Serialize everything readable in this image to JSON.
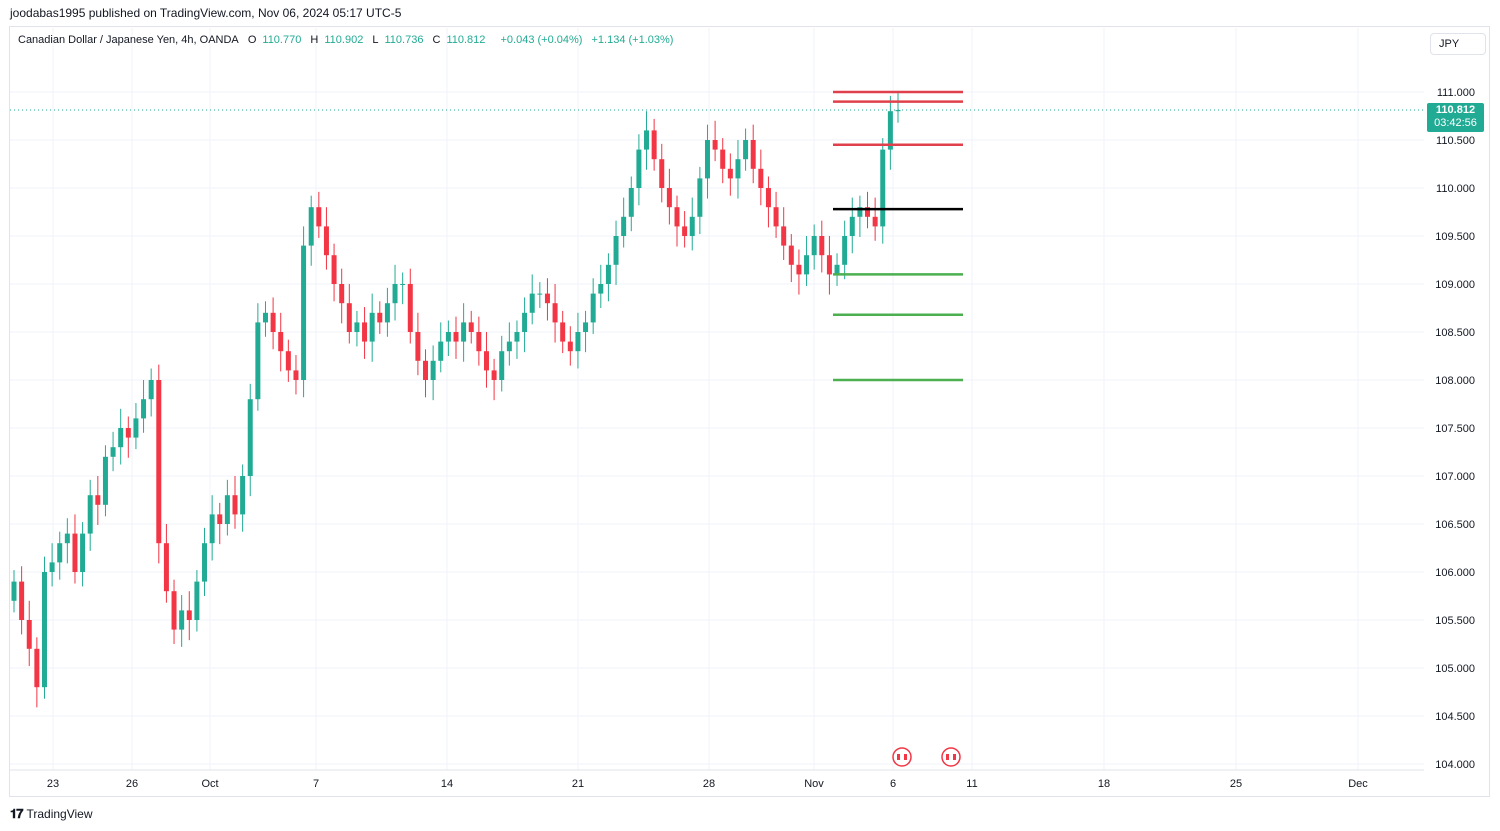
{
  "header": {
    "published": "joodabas1995 published on TradingView.com, Nov 06, 2024 05:17 UTC-5"
  },
  "legend": {
    "symbol": "Canadian Dollar / Japanese Yen, 4h, OANDA",
    "o_label": "O",
    "o": "110.770",
    "h_label": "H",
    "h": "110.902",
    "l_label": "L",
    "l": "110.736",
    "c_label": "C",
    "c": "110.812",
    "change": "+0.043 (+0.04%)",
    "change_period": "+1.134 (+1.03%)"
  },
  "currency_button": "JPY",
  "last_price": {
    "price": "110.812",
    "countdown": "03:42:56"
  },
  "footer": {
    "logo_text": "TradingView"
  },
  "colors": {
    "up": "#22ab94",
    "down": "#f23645",
    "grid": "#f0f3fa",
    "text": "#131722",
    "resistance": "#e0404b",
    "pivot": "#000000",
    "support": "#4caf50"
  },
  "chart_data": {
    "type": "candlestick",
    "ylim": [
      103.85,
      111.65
    ],
    "y_ticks": [
      "111.000",
      "110.500",
      "110.000",
      "109.500",
      "109.000",
      "108.500",
      "108.000",
      "107.500",
      "107.000",
      "106.500",
      "106.000",
      "105.500",
      "105.000",
      "104.500",
      "104.000"
    ],
    "x_ticks": [
      "23",
      "26",
      "Oct",
      "7",
      "14",
      "21",
      "28",
      "Nov",
      "6",
      "11",
      "18",
      "25",
      "Dec"
    ],
    "closes": [
      105.9,
      105.5,
      105.2,
      104.8,
      106.0,
      106.1,
      106.3,
      106.4,
      106.0,
      106.4,
      106.8,
      106.7,
      107.2,
      107.3,
      107.5,
      107.4,
      107.6,
      107.8,
      108.0,
      106.3,
      105.8,
      105.4,
      105.6,
      105.5,
      105.9,
      106.3,
      106.6,
      106.5,
      106.8,
      106.6,
      107.0,
      107.8,
      108.6,
      108.7,
      108.5,
      108.3,
      108.1,
      108.0,
      109.4,
      109.8,
      109.6,
      109.3,
      109.0,
      108.8,
      108.5,
      108.6,
      108.4,
      108.7,
      108.6,
      108.8,
      109.0,
      109.0,
      108.5,
      108.2,
      108.0,
      108.2,
      108.4,
      108.5,
      108.4,
      108.6,
      108.5,
      108.3,
      108.1,
      108.0,
      108.3,
      108.4,
      108.5,
      108.7,
      108.9,
      108.9,
      108.8,
      108.6,
      108.4,
      108.3,
      108.5,
      108.6,
      108.9,
      109.0,
      109.2,
      109.5,
      109.7,
      110.0,
      110.4,
      110.6,
      110.3,
      110.0,
      109.8,
      109.6,
      109.5,
      109.7,
      110.1,
      110.5,
      110.4,
      110.2,
      110.1,
      110.3,
      110.5,
      110.2,
      110.0,
      109.8,
      109.6,
      109.4,
      109.2,
      109.1,
      109.3,
      109.5,
      109.3,
      109.1,
      109.2,
      109.5,
      109.7,
      109.8,
      109.7,
      109.6,
      110.4,
      110.8,
      110.812
    ],
    "levels": [
      {
        "role": "resistance",
        "price": 111.0
      },
      {
        "role": "resistance",
        "price": 110.9
      },
      {
        "role": "resistance",
        "price": 110.45
      },
      {
        "role": "pivot",
        "price": 109.78
      },
      {
        "role": "support",
        "price": 109.1
      },
      {
        "role": "support",
        "price": 108.68
      },
      {
        "role": "support",
        "price": 108.0
      }
    ]
  }
}
